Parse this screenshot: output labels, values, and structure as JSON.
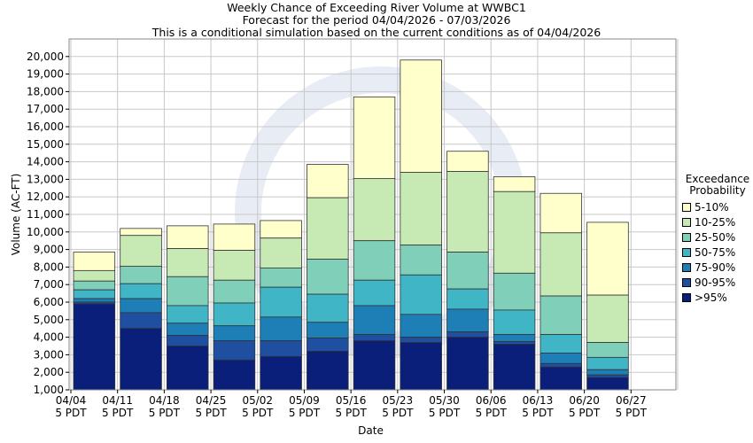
{
  "chart_data": {
    "type": "bar",
    "title": "Weekly Chance of Exceeding River Volume at WWBC1",
    "subtitle1": "Forecast for the period 04/04/2026 - 07/03/2026",
    "subtitle2": "This is a conditional simulation based on the current conditions as of 04/04/2026",
    "xlabel": "Date",
    "ylabel": "Volume (AC-FT)",
    "ylim": [
      1000,
      21000
    ],
    "yticks": [
      "1,000",
      "2,000",
      "3,000",
      "4,000",
      "5,000",
      "6,000",
      "7,000",
      "8,000",
      "9,000",
      "10,000",
      "11,000",
      "12,000",
      "13,000",
      "14,000",
      "15,000",
      "16,000",
      "17,000",
      "18,000",
      "19,000",
      "20,000"
    ],
    "xticks": [
      [
        "04/04",
        "5 PDT"
      ],
      [
        "04/11",
        "5 PDT"
      ],
      [
        "04/18",
        "5 PDT"
      ],
      [
        "04/25",
        "5 PDT"
      ],
      [
        "05/02",
        "5 PDT"
      ],
      [
        "05/09",
        "5 PDT"
      ],
      [
        "05/16",
        "5 PDT"
      ],
      [
        "05/23",
        "5 PDT"
      ],
      [
        "05/30",
        "5 PDT"
      ],
      [
        "06/06",
        "5 PDT"
      ],
      [
        "06/13",
        "5 PDT"
      ],
      [
        "06/20",
        "5 PDT"
      ],
      [
        "06/27",
        "5 PDT"
      ]
    ],
    "grid": true,
    "legend": {
      "title_line1": "Exceedance",
      "title_line2": "Probability",
      "placement": "right"
    },
    "series": [
      {
        "name": ">95%",
        "color": "#0a1f7a",
        "tops": [
          5900,
          4500,
          3500,
          2700,
          2900,
          3200,
          3800,
          3700,
          4000,
          3600,
          2300,
          1700
        ]
      },
      {
        "name": "90-95%",
        "color": "#1f4fa0",
        "tops": [
          6000,
          5400,
          4100,
          3800,
          3800,
          3950,
          4150,
          4000,
          4300,
          3750,
          2500,
          1850
        ]
      },
      {
        "name": "75-90%",
        "color": "#1d7fb6",
        "tops": [
          6200,
          6200,
          4800,
          4650,
          5150,
          4850,
          5800,
          5300,
          5600,
          4150,
          3100,
          2150
        ]
      },
      {
        "name": "50-75%",
        "color": "#40b5c6",
        "tops": [
          6700,
          7050,
          5800,
          5950,
          6850,
          6450,
          7250,
          7550,
          6750,
          5550,
          4150,
          2850
        ]
      },
      {
        "name": "25-50%",
        "color": "#7fcfb9",
        "tops": [
          7200,
          8050,
          7450,
          7250,
          7950,
          8450,
          9500,
          9250,
          8850,
          7650,
          6350,
          3700
        ]
      },
      {
        "name": "10-25%",
        "color": "#c7e9b4",
        "tops": [
          7800,
          9800,
          9050,
          8950,
          9650,
          11950,
          13050,
          13400,
          13450,
          12300,
          9950,
          6400
        ]
      },
      {
        "name": "5-10%",
        "color": "#ffffcc",
        "tops": [
          8850,
          10200,
          10350,
          10450,
          10650,
          13850,
          17700,
          19800,
          14600,
          13150,
          12200,
          10550
        ]
      }
    ]
  }
}
